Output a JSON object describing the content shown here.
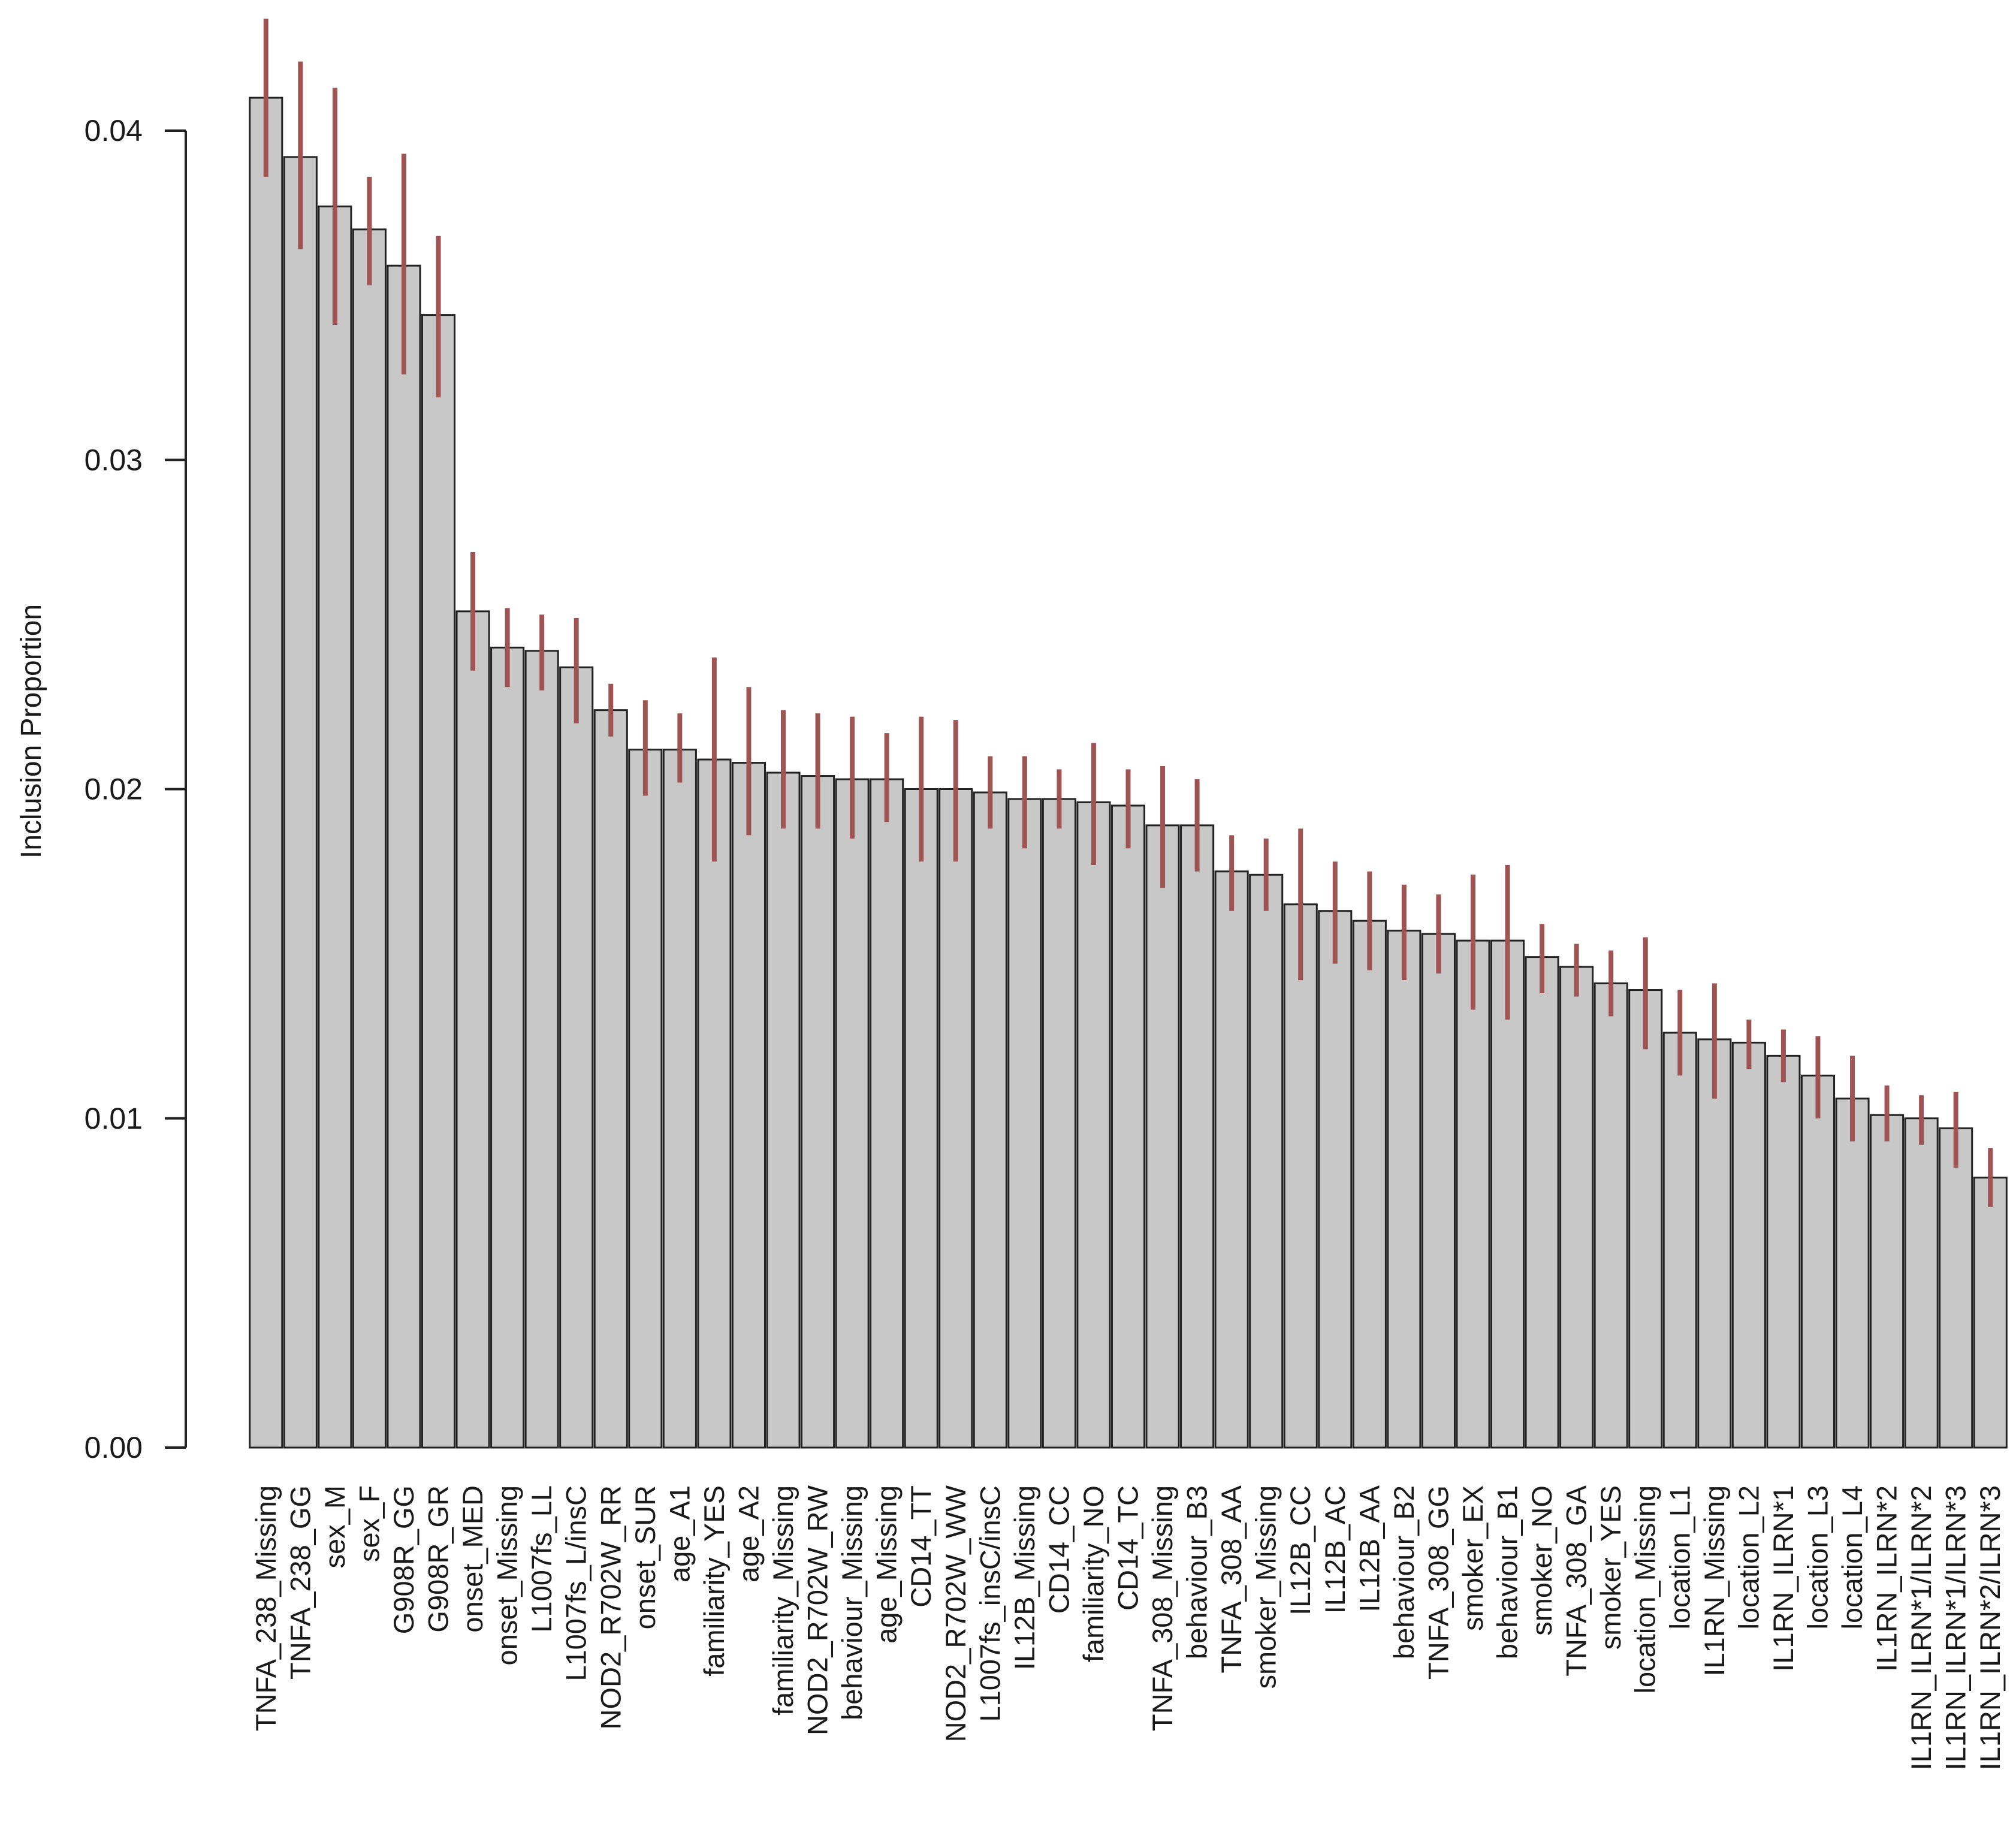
{
  "chart_data": {
    "type": "bar",
    "title": "",
    "xlabel": "",
    "ylabel": "Inclusion Proportion",
    "ylim": [
      0,
      0.04
    ],
    "yticks": [
      "0.00",
      "0.01",
      "0.02",
      "0.03",
      "0.04"
    ],
    "bar_color": "#c8c8c8",
    "error_bar_color": "#a05353",
    "categories": [
      "TNFA_238_Missing",
      "TNFA_238_GG",
      "sex_M",
      "sex_F",
      "G908R_GG",
      "G908R_GR",
      "onset_MED",
      "onset_Missing",
      "L1007fs_LL",
      "L1007fs_L/insC",
      "NOD2_R702W_RR",
      "onset_SUR",
      "age_A1",
      "familiarity_YES",
      "age_A2",
      "familiarity_Missing",
      "NOD2_R702W_RW",
      "behaviour_Missing",
      "age_Missing",
      "CD14_TT",
      "NOD2_R702W_WW",
      "L1007fs_insC/insC",
      "IL12B_Missing",
      "CD14_CC",
      "familiarity_NO",
      "CD14_TC",
      "TNFA_308_Missing",
      "behaviour_B3",
      "TNFA_308_AA",
      "smoker_Missing",
      "IL12B_CC",
      "IL12B_AC",
      "IL12B_AA",
      "behaviour_B2",
      "TNFA_308_GG",
      "smoker_EX",
      "behaviour_B1",
      "smoker_NO",
      "TNFA_308_GA",
      "smoker_YES",
      "location_Missing",
      "location_L1",
      "IL1RN_Missing",
      "location_L2",
      "IL1RN_ILRN*1",
      "location_L3",
      "location_L4",
      "IL1RN_ILRN*2",
      "IL1RN_ILRN*1/ILRN*2",
      "IL1RN_ILRN*1/ILRN*3",
      "IL1RN_ILRN*2/ILRN*3"
    ],
    "values": [
      0.041,
      0.0392,
      0.0377,
      0.037,
      0.0359,
      0.0344,
      0.0254,
      0.0243,
      0.0242,
      0.0237,
      0.0224,
      0.0212,
      0.0212,
      0.0209,
      0.0208,
      0.0205,
      0.0204,
      0.0203,
      0.0203,
      0.02,
      0.02,
      0.0199,
      0.0197,
      0.0197,
      0.0196,
      0.0195,
      0.0189,
      0.0189,
      0.0175,
      0.0174,
      0.0165,
      0.0163,
      0.016,
      0.0157,
      0.0156,
      0.0154,
      0.0154,
      0.0149,
      0.0146,
      0.0141,
      0.0139,
      0.0126,
      0.0124,
      0.0123,
      0.0119,
      0.0113,
      0.0106,
      0.0101,
      0.01,
      0.0097,
      0.0082
    ],
    "error_low": [
      0.0386,
      0.0364,
      0.0341,
      0.0353,
      0.0326,
      0.0319,
      0.0236,
      0.0231,
      0.023,
      0.022,
      0.0216,
      0.0198,
      0.0202,
      0.0178,
      0.0186,
      0.0188,
      0.0188,
      0.0185,
      0.019,
      0.0178,
      0.0178,
      0.0188,
      0.0182,
      0.0188,
      0.0177,
      0.0182,
      0.017,
      0.0175,
      0.0163,
      0.0163,
      0.0142,
      0.0147,
      0.0145,
      0.0142,
      0.0144,
      0.0133,
      0.013,
      0.0138,
      0.0137,
      0.0131,
      0.0121,
      0.0113,
      0.0106,
      0.0115,
      0.0111,
      0.01,
      0.0093,
      0.0093,
      0.0092,
      0.0085,
      0.0073
    ],
    "error_high": [
      0.0434,
      0.0421,
      0.0413,
      0.0386,
      0.0393,
      0.0368,
      0.0272,
      0.0255,
      0.0253,
      0.0252,
      0.0232,
      0.0227,
      0.0223,
      0.024,
      0.0231,
      0.0224,
      0.0223,
      0.0222,
      0.0217,
      0.0222,
      0.0221,
      0.021,
      0.021,
      0.0206,
      0.0214,
      0.0206,
      0.0207,
      0.0203,
      0.0186,
      0.0185,
      0.0188,
      0.0178,
      0.0175,
      0.0171,
      0.0168,
      0.0174,
      0.0177,
      0.0159,
      0.0153,
      0.0151,
      0.0155,
      0.0139,
      0.0141,
      0.013,
      0.0127,
      0.0125,
      0.0119,
      0.011,
      0.0107,
      0.0108,
      0.0091
    ],
    "grid": false,
    "legend": "none"
  }
}
